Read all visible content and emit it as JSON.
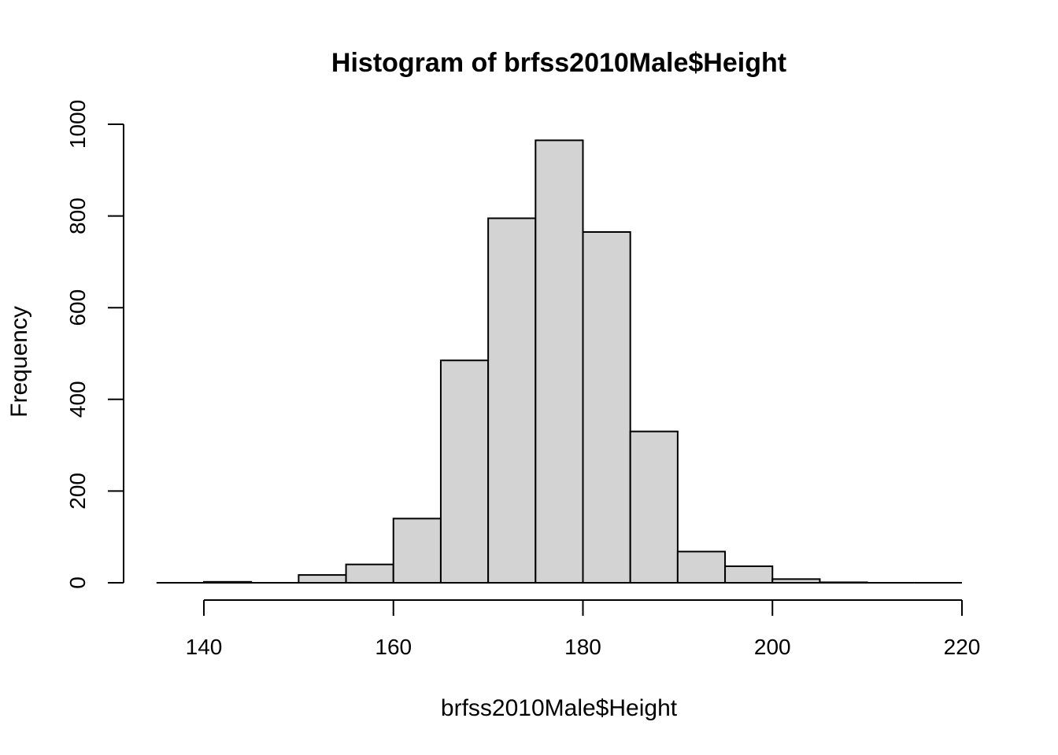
{
  "chart_data": {
    "type": "bar",
    "title": "Histogram of brfss2010Male$Height",
    "xlabel": "brfss2010Male$Height",
    "ylabel": "Frequency",
    "xlim": [
      140,
      220
    ],
    "ylim": [
      0,
      1000
    ],
    "x_ticks": [
      140,
      160,
      180,
      200,
      220
    ],
    "y_ticks": [
      0,
      200,
      400,
      600,
      800,
      1000
    ],
    "bins": [
      {
        "start": 135,
        "end": 140,
        "count": 0
      },
      {
        "start": 140,
        "end": 145,
        "count": 2
      },
      {
        "start": 145,
        "end": 150,
        "count": 0
      },
      {
        "start": 150,
        "end": 155,
        "count": 17
      },
      {
        "start": 155,
        "end": 160,
        "count": 40
      },
      {
        "start": 160,
        "end": 165,
        "count": 140
      },
      {
        "start": 165,
        "end": 170,
        "count": 485
      },
      {
        "start": 170,
        "end": 175,
        "count": 795
      },
      {
        "start": 175,
        "end": 180,
        "count": 965
      },
      {
        "start": 180,
        "end": 185,
        "count": 765
      },
      {
        "start": 185,
        "end": 190,
        "count": 330
      },
      {
        "start": 190,
        "end": 195,
        "count": 68
      },
      {
        "start": 195,
        "end": 200,
        "count": 36
      },
      {
        "start": 200,
        "end": 205,
        "count": 8
      },
      {
        "start": 205,
        "end": 210,
        "count": 1
      },
      {
        "start": 210,
        "end": 215,
        "count": 0
      },
      {
        "start": 215,
        "end": 220,
        "count": 0
      }
    ],
    "bar_color": "#d3d3d3",
    "grid": false
  }
}
